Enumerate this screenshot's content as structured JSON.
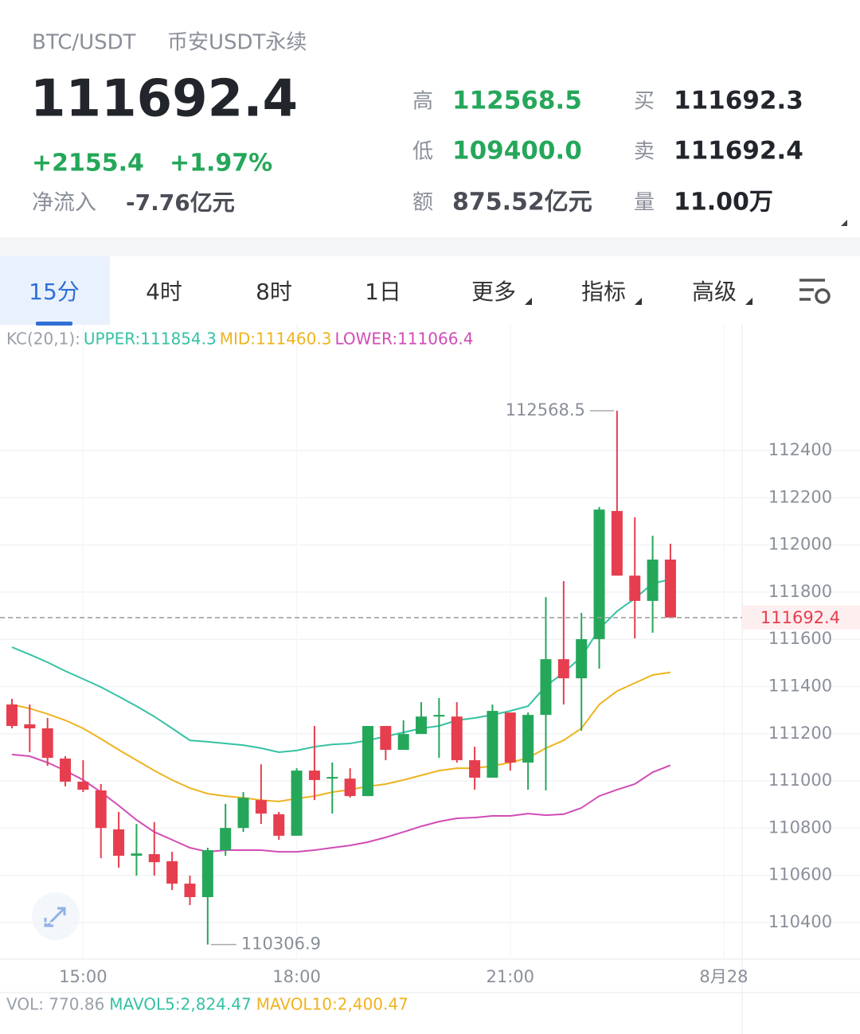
{
  "header": {
    "symbol": "BTC/USDT",
    "market": "币安USDT永续",
    "price": "111692.4",
    "change": "+2155.4",
    "change_pct": "+1.97%",
    "net_inflow_label": "净流入",
    "net_inflow": "-7.76亿元",
    "stats": [
      {
        "label": "高",
        "value": "112568.5"
      },
      {
        "label": "低",
        "value": "109400.0"
      },
      {
        "label": "额",
        "value": "875.52亿元"
      },
      {
        "label": "买",
        "value": "111692.3"
      },
      {
        "label": "卖",
        "value": "111692.4"
      },
      {
        "label": "量",
        "value": "11.00万"
      }
    ]
  },
  "tabs": [
    "15分",
    "4时",
    "8时",
    "1日",
    "更多",
    "指标",
    "高级"
  ],
  "chart_data": {
    "type": "candlestick",
    "indicator": "KC(20,1):",
    "up_color": "#25a75a",
    "down_color": "#e63e4f",
    "open": [
      111324,
      111240,
      111223,
      111095,
      110997,
      110960,
      110795,
      110683,
      110690,
      110660,
      110565,
      110508,
      110707,
      110801,
      110919,
      110859,
      110768,
      111044,
      111010,
      111010,
      110936,
      111233,
      111132,
      111199,
      111273,
      111273,
      111088,
      111014,
      111290,
      111078,
      111280,
      111516,
      111435,
      111601,
      112144,
      111870,
      111763,
      111938
    ],
    "high": [
      111348,
      111324,
      111267,
      111105,
      111088,
      110987,
      110869,
      110818,
      110826,
      110700,
      110599,
      110717,
      110903,
      110953,
      111071,
      110869,
      111054,
      111233,
      111078,
      111054,
      111233,
      111233,
      111257,
      111334,
      111351,
      111334,
      111145,
      111324,
      111290,
      111290,
      111779,
      111847,
      111712,
      112161,
      112568.5,
      112117,
      112039,
      112005
    ],
    "low": [
      111223,
      111122,
      111064,
      110977,
      110953,
      110673,
      110633,
      110599,
      110599,
      110538,
      110474,
      110306.9,
      110683,
      110784,
      110818,
      110751,
      110768,
      110919,
      110862,
      110930,
      110936,
      111088,
      111132,
      111213,
      111098,
      111078,
      110963,
      111014,
      111044,
      110963,
      110960,
      111324,
      111213,
      111476,
      111870,
      111604,
      111628,
      111692.4
    ],
    "close": [
      111233,
      111223,
      111098,
      110997,
      110963,
      110801,
      110683,
      110693,
      110656,
      110565,
      110508,
      110707,
      110801,
      110929,
      110862,
      110768,
      111044,
      111004,
      111017,
      110936,
      111233,
      111132,
      111199,
      111273,
      111280,
      111088,
      111014,
      111297,
      111078,
      111280,
      111516,
      111435,
      111601,
      112150,
      111870,
      111763,
      111938,
      111692.4
    ],
    "series": [
      {
        "name": "UPPER:111854.3",
        "color": "#35c2a4",
        "values": [
          111567,
          111536,
          111503,
          111466,
          111432,
          111398,
          111358,
          111317,
          111273,
          111223,
          111172,
          111166,
          111159,
          111152,
          111139,
          111122,
          111129,
          111145,
          111155,
          111159,
          111172,
          111189,
          111206,
          111223,
          111233,
          111257,
          111267,
          111280,
          111297,
          111317,
          111402,
          111459,
          111526,
          111644,
          111719,
          111773,
          111837,
          111854.3
        ]
      },
      {
        "name": "MID:111460.3",
        "color": "#efb320",
        "values": [
          111324,
          111307,
          111284,
          111257,
          111223,
          111179,
          111132,
          111088,
          111044,
          111004,
          110970,
          110946,
          110936,
          110929,
          110919,
          110913,
          110926,
          110936,
          110953,
          110963,
          110977,
          110987,
          111004,
          111024,
          111044,
          111054,
          111054,
          111064,
          111078,
          111098,
          111139,
          111172,
          111223,
          111324,
          111381,
          111415,
          111449,
          111460.3
        ]
      },
      {
        "name": "LOWER:111066.4",
        "color": "#d14cb6",
        "values": [
          111112,
          111105,
          111078,
          111044,
          111004,
          110953,
          110896,
          110835,
          110784,
          110751,
          110717,
          110700,
          110707,
          110707,
          110707,
          110700,
          110700,
          110707,
          110717,
          110727,
          110741,
          110761,
          110784,
          110808,
          110828,
          110842,
          110845,
          110852,
          110852,
          110862,
          110855,
          110859,
          110886,
          110936,
          110963,
          110987,
          111037,
          111066.4
        ]
      }
    ],
    "ylim": [
      110245,
      112825
    ],
    "yticks": [
      110400,
      110600,
      110800,
      111000,
      111200,
      111400,
      111600,
      111800,
      112000,
      112200,
      112400
    ],
    "xlim": [
      -0.67,
      41.03
    ],
    "xticks": [
      {
        "value": 4,
        "label": "15:00"
      },
      {
        "value": 16,
        "label": "18:00"
      },
      {
        "value": 28,
        "label": "21:00"
      },
      {
        "value": 40,
        "label": "8月28"
      }
    ]
  },
  "volume": {
    "label": "VOL: 770.86",
    "ma5": "MAVOL5:2,824.47",
    "ma10": "MAVOL10:2,400.47"
  }
}
